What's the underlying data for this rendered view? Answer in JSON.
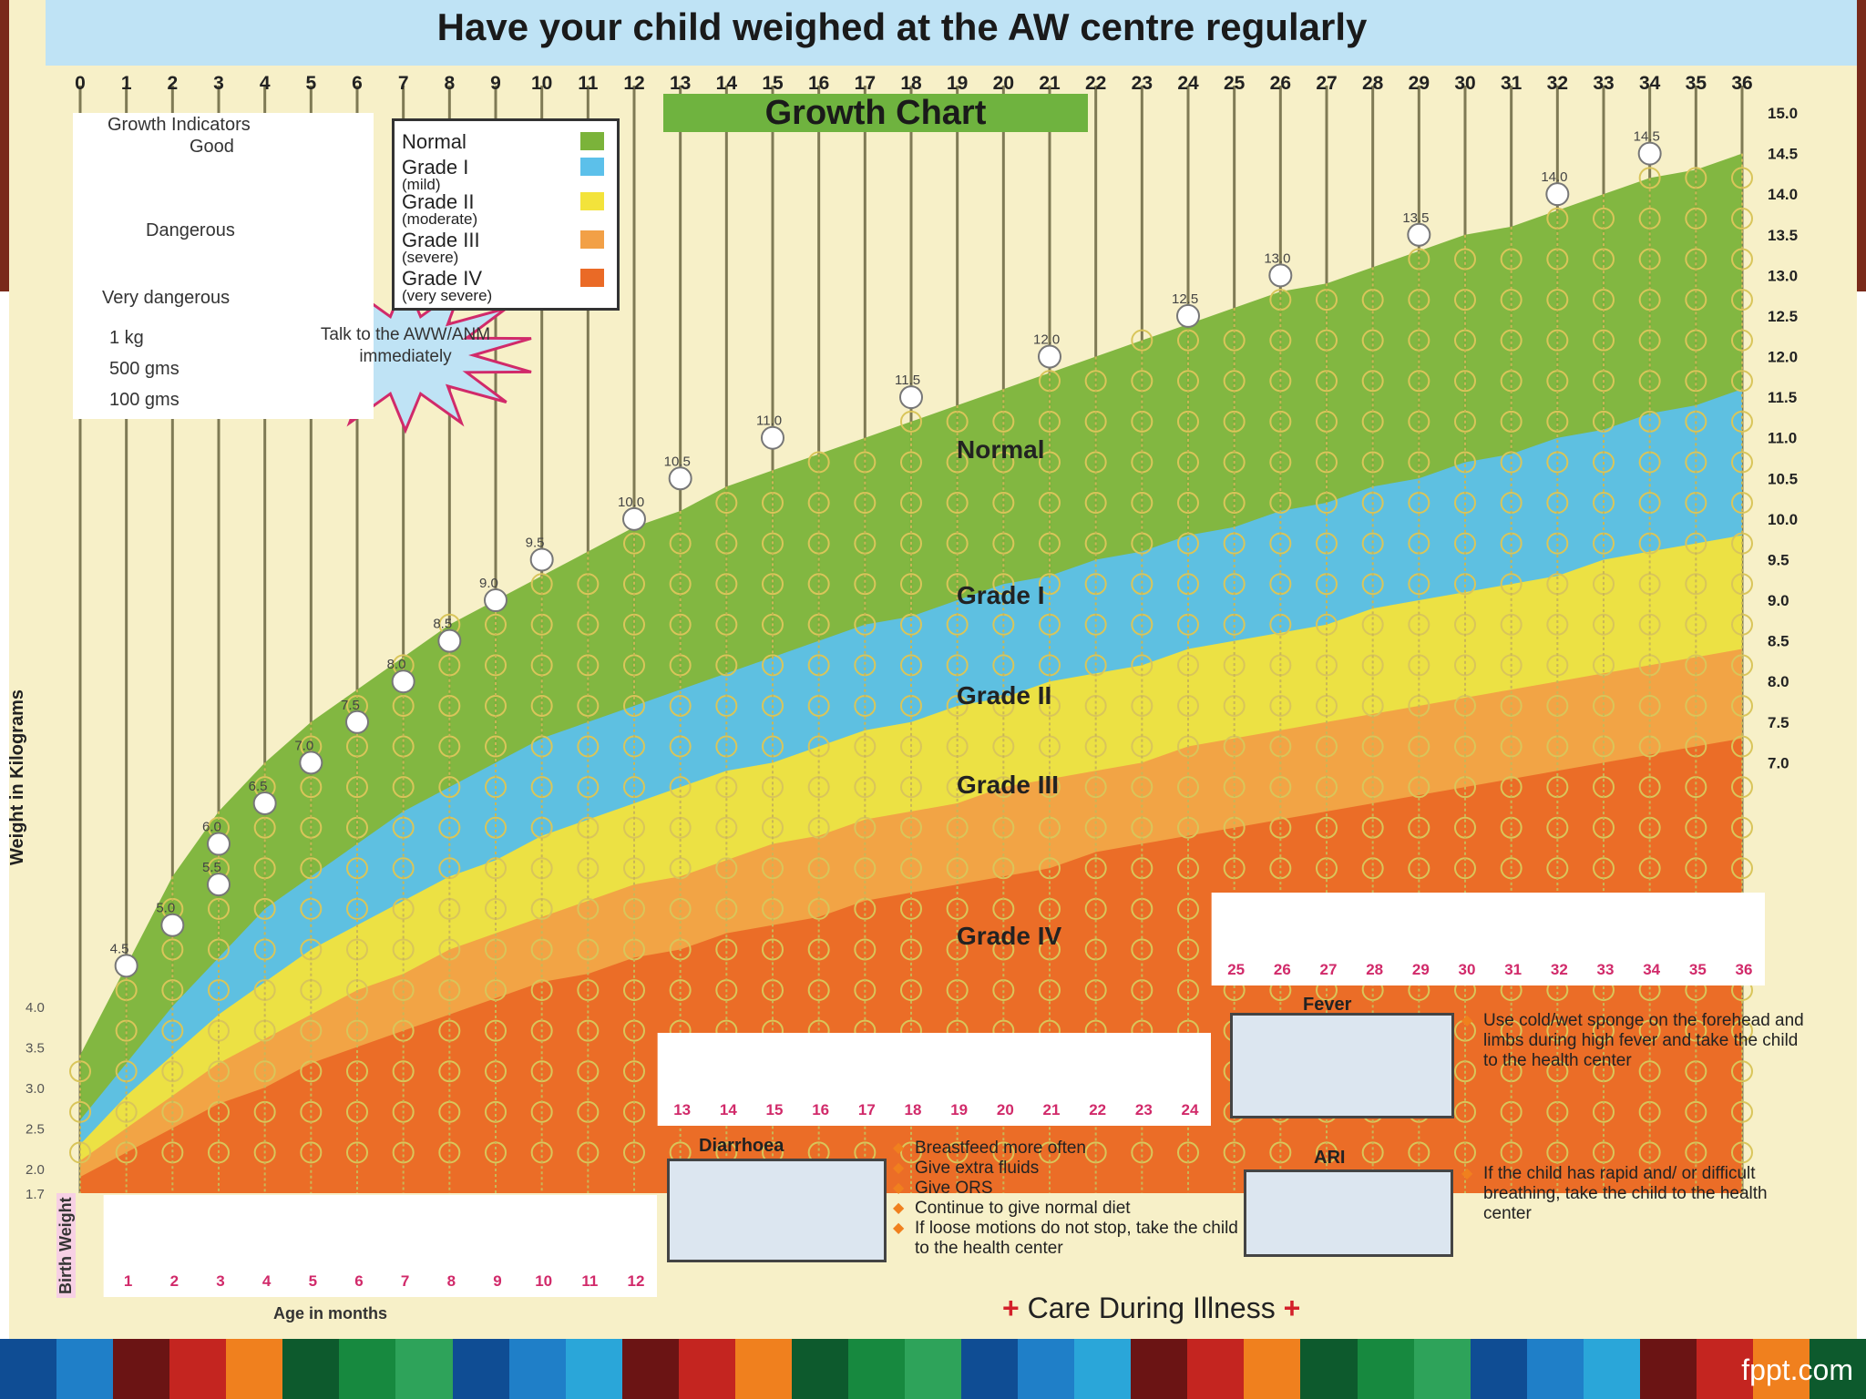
{
  "title": "Have your child weighed at the AW centre regularly",
  "chart_label": "Growth Chart",
  "footer_brand": "fppt.com",
  "footer_colors": [
    "#0f4d94",
    "#1f7fc8",
    "#6b1414",
    "#c42520",
    "#f0801e",
    "#0d5a2d",
    "#17893f",
    "#2ea35a",
    "#0f4d94",
    "#1f7fc8",
    "#2aa6d9",
    "#6b1414",
    "#c42520",
    "#f0801e",
    "#0d5a2d",
    "#17893f",
    "#2ea35a",
    "#0f4d94",
    "#1f7fc8",
    "#2aa6d9",
    "#6b1414",
    "#c42520",
    "#f0801e",
    "#0d5a2d",
    "#17893f",
    "#2ea35a",
    "#0f4d94",
    "#1f7fc8",
    "#2aa6d9",
    "#6b1414",
    "#c42520",
    "#f0801e",
    "#0d5a2d"
  ],
  "legend": {
    "grades": [
      {
        "label": "Normal",
        "sub": "",
        "color": "#7bb33a"
      },
      {
        "label": "Grade I",
        "sub": "(mild)",
        "color": "#5cc0ea"
      },
      {
        "label": "Grade II",
        "sub": "(moderate)",
        "color": "#f3e33b"
      },
      {
        "label": "Grade III",
        "sub": "(severe)",
        "color": "#f2a046"
      },
      {
        "label": "Grade IV",
        "sub": "(very severe)",
        "color": "#ea6a26"
      }
    ],
    "indicators": {
      "title": "Growth Indicators",
      "good": "Good",
      "dangerous": "Dangerous",
      "very_dangerous": "Very dangerous",
      "sizes": [
        "1 kg",
        "500 gms",
        "100 gms"
      ]
    },
    "alert": "Talk to the AWW/ANM immediately"
  },
  "chart_data": {
    "type": "area",
    "title": "Growth Chart",
    "xlabel": "Age in months",
    "ylabel": "Weight in Kilograms",
    "x_ticks": [
      "0",
      "1",
      "2",
      "3",
      "4",
      "5",
      "6",
      "7",
      "8",
      "9",
      "10",
      "11",
      "12",
      "13",
      "14",
      "15",
      "16",
      "17",
      "18",
      "19",
      "20",
      "21",
      "22",
      "23",
      "24",
      "25",
      "26",
      "27",
      "28",
      "29",
      "30",
      "31",
      "32",
      "33",
      "34",
      "35",
      "36"
    ],
    "y_ticks": [
      "15.0",
      "14.5",
      "14.0",
      "13.5",
      "13.0",
      "12.5",
      "12.0",
      "11.5",
      "11.0",
      "10.5",
      "10.0",
      "9.5",
      "9.0",
      "8.5",
      "8.0",
      "7.5",
      "7.0"
    ],
    "y_left_ticks": [
      "1.7",
      "2.0",
      "2.5",
      "3.0",
      "3.5",
      "4.0"
    ],
    "xlim": [
      0,
      36
    ],
    "ylim": [
      1.7,
      15.0
    ],
    "band_labels": [
      "Normal",
      "Grade I",
      "Grade II",
      "Grade III",
      "Grade IV"
    ],
    "curve_labels": [
      {
        "x": 1,
        "y": 4.5,
        "text": "4.5"
      },
      {
        "x": 2,
        "y": 5.0,
        "text": "5.0"
      },
      {
        "x": 3,
        "y": 5.5,
        "text": "5.5"
      },
      {
        "x": 3,
        "y": 6.0,
        "text": "6.0"
      },
      {
        "x": 4,
        "y": 6.5,
        "text": "6.5"
      },
      {
        "x": 5,
        "y": 7.0,
        "text": "7.0"
      },
      {
        "x": 6,
        "y": 7.5,
        "text": "7.5"
      },
      {
        "x": 7,
        "y": 8.0,
        "text": "8.0"
      },
      {
        "x": 8,
        "y": 8.5,
        "text": "8.5"
      },
      {
        "x": 9,
        "y": 9.0,
        "text": "9.0"
      },
      {
        "x": 10,
        "y": 9.5,
        "text": "9.5"
      },
      {
        "x": 12,
        "y": 10.0,
        "text": "10.0"
      },
      {
        "x": 13,
        "y": 10.5,
        "text": "10.5"
      },
      {
        "x": 15,
        "y": 11.0,
        "text": "11.0"
      },
      {
        "x": 18,
        "y": 11.5,
        "text": "11.5"
      },
      {
        "x": 21,
        "y": 12.0,
        "text": "12.0"
      },
      {
        "x": 24,
        "y": 12.5,
        "text": "12.5"
      },
      {
        "x": 26,
        "y": 13.0,
        "text": "13.0"
      },
      {
        "x": 29,
        "y": 13.5,
        "text": "13.5"
      },
      {
        "x": 32,
        "y": 14.0,
        "text": "14.0"
      },
      {
        "x": 34,
        "y": 14.5,
        "text": "14.5"
      }
    ],
    "series": [
      {
        "name": "Normal",
        "color": "#7bb33a",
        "upper": [
          3.4,
          4.5,
          5.6,
          6.4,
          7.0,
          7.5,
          7.9,
          8.3,
          8.7,
          9.0,
          9.3,
          9.6,
          9.9,
          10.1,
          10.4,
          10.6,
          10.8,
          11.0,
          11.2,
          11.4,
          11.6,
          11.8,
          12.0,
          12.2,
          12.4,
          12.6,
          12.8,
          12.9,
          13.1,
          13.3,
          13.5,
          13.6,
          13.8,
          14.0,
          14.2,
          14.3,
          14.5
        ]
      },
      {
        "name": "Grade I",
        "color": "#5cc0ea",
        "upper": [
          2.6,
          3.3,
          4.0,
          4.6,
          5.2,
          5.6,
          6.0,
          6.4,
          6.7,
          7.0,
          7.3,
          7.5,
          7.7,
          7.9,
          8.1,
          8.3,
          8.5,
          8.7,
          8.8,
          9.0,
          9.2,
          9.3,
          9.5,
          9.6,
          9.8,
          9.9,
          10.1,
          10.2,
          10.4,
          10.5,
          10.7,
          10.8,
          11.0,
          11.1,
          11.3,
          11.4,
          11.6
        ]
      },
      {
        "name": "Grade II",
        "color": "#f3e33b",
        "upper": [
          2.3,
          2.9,
          3.4,
          3.9,
          4.3,
          4.7,
          5.0,
          5.3,
          5.6,
          5.8,
          6.1,
          6.3,
          6.5,
          6.7,
          6.9,
          7.0,
          7.2,
          7.4,
          7.5,
          7.7,
          7.8,
          8.0,
          8.1,
          8.2,
          8.4,
          8.5,
          8.6,
          8.7,
          8.9,
          9.0,
          9.1,
          9.2,
          9.3,
          9.5,
          9.6,
          9.7,
          9.8
        ]
      },
      {
        "name": "Grade III",
        "color": "#f2a046",
        "upper": [
          2.1,
          2.5,
          2.9,
          3.3,
          3.6,
          3.9,
          4.2,
          4.4,
          4.7,
          4.9,
          5.1,
          5.3,
          5.5,
          5.6,
          5.8,
          6.0,
          6.1,
          6.3,
          6.4,
          6.5,
          6.7,
          6.8,
          6.9,
          7.0,
          7.2,
          7.3,
          7.4,
          7.5,
          7.6,
          7.7,
          7.8,
          7.9,
          8.0,
          8.1,
          8.2,
          8.3,
          8.4
        ]
      },
      {
        "name": "Grade IV",
        "color": "#ea6a26",
        "upper": [
          1.9,
          2.2,
          2.5,
          2.8,
          3.0,
          3.3,
          3.5,
          3.7,
          3.9,
          4.1,
          4.3,
          4.4,
          4.6,
          4.7,
          4.9,
          5.0,
          5.1,
          5.3,
          5.4,
          5.5,
          5.6,
          5.7,
          5.9,
          6.0,
          6.1,
          6.2,
          6.3,
          6.4,
          6.5,
          6.6,
          6.7,
          6.8,
          6.9,
          7.0,
          7.1,
          7.2,
          7.3
        ]
      }
    ]
  },
  "boxes": {
    "birth_weight": "Birth Weight",
    "months_row1": [
      "1",
      "2",
      "3",
      "4",
      "5",
      "6",
      "7",
      "8",
      "9",
      "10",
      "11",
      "12"
    ],
    "months_row2": [
      "13",
      "14",
      "15",
      "16",
      "17",
      "18",
      "19",
      "20",
      "21",
      "22",
      "23",
      "24"
    ],
    "months_row3": [
      "25",
      "26",
      "27",
      "28",
      "29",
      "30",
      "31",
      "32",
      "33",
      "34",
      "35",
      "36"
    ]
  },
  "illness": {
    "title": "Care During Illness",
    "fever": {
      "head": "Fever",
      "items": [
        "Use cold/wet sponge on the forehead and limbs during high fever and take the child to the health center"
      ]
    },
    "diarrhoea": {
      "head": "Diarrhoea",
      "items": [
        "Breastfeed more often",
        "Give extra fluids",
        "Give ORS",
        "Continue to give normal diet",
        "If loose motions do not stop, take the child to the health center"
      ]
    },
    "ari": {
      "head": "ARI",
      "items": [
        "If the child has rapid and/ or difficult breathing, take the child to the health center"
      ]
    }
  }
}
